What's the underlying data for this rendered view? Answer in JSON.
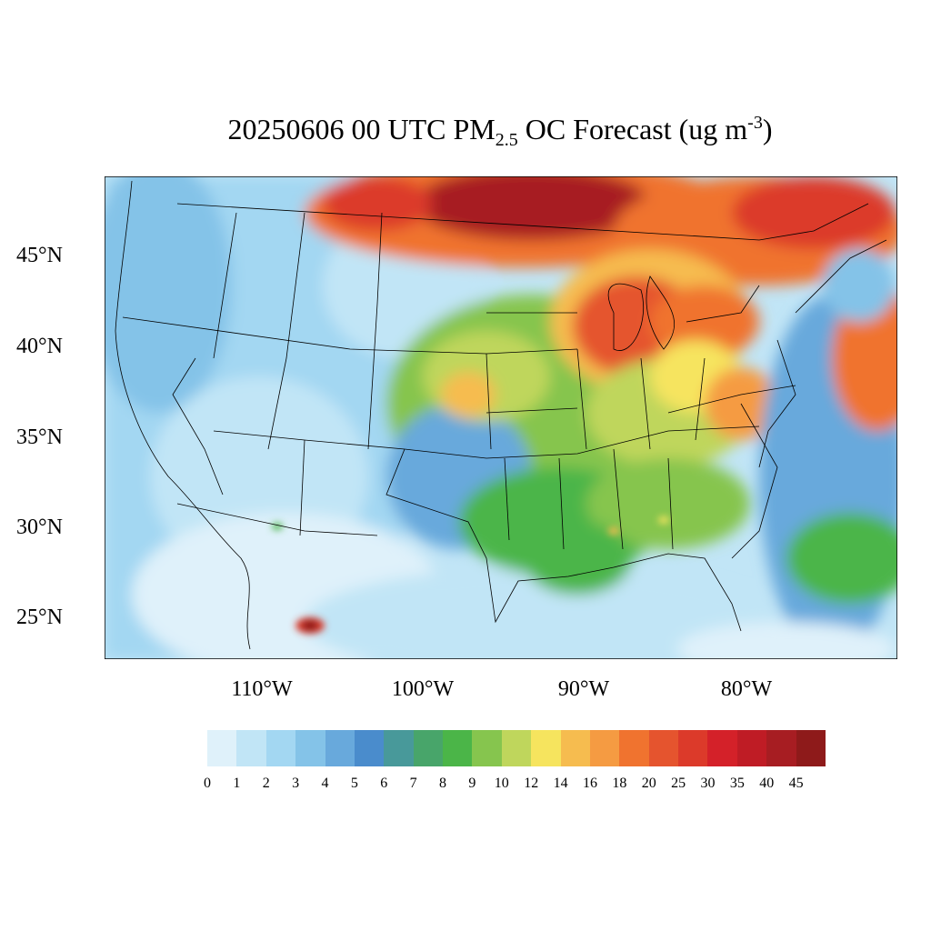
{
  "title": {
    "prefix": "20250606 00 UTC PM",
    "subscript": "2.5",
    "middle": " OC Forecast (ug m",
    "superscript": "-3",
    "suffix": ")"
  },
  "lat_labels": [
    "45°N",
    "40°N",
    "35°N",
    "30°N",
    "25°N"
  ],
  "lon_labels": [
    "110°W",
    "100°W",
    "90°W",
    "80°W"
  ],
  "colorbar": {
    "labels": [
      "0",
      "1",
      "2",
      "3",
      "4",
      "5",
      "6",
      "7",
      "8",
      "9",
      "10",
      "12",
      "14",
      "16",
      "18",
      "20",
      "25",
      "30",
      "35",
      "40",
      "45"
    ],
    "colors": [
      "#dff1fa",
      "#c1e5f6",
      "#a3d7f2",
      "#84c3e8",
      "#68a9dc",
      "#4a8ccc",
      "#48999a",
      "#48a56a",
      "#4bb548",
      "#86c54e",
      "#bfd65c",
      "#f6e45e",
      "#f6bc4f",
      "#f59b42",
      "#f0732f",
      "#e5542e",
      "#dc3a2a",
      "#d42129",
      "#bf1c25",
      "#a71d22",
      "#8e1a1a"
    ]
  },
  "map": {
    "region": "Continental United States",
    "projection": "Lambert conformal",
    "fields": "PM2.5 organic carbon concentration"
  }
}
